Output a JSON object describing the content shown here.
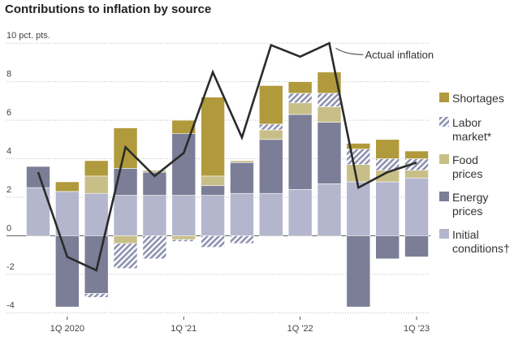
{
  "chart_data": {
    "type": "bar",
    "stacked": true,
    "title": "Contributions to inflation by source",
    "categories": [
      null,
      "1Q 2020",
      null,
      null,
      null,
      "1Q '21",
      null,
      null,
      null,
      "1Q '22",
      null,
      null,
      null,
      "1Q '23"
    ],
    "ylim": [
      -4.2,
      10.6
    ],
    "yticks": [
      -4,
      -2,
      0,
      2,
      4,
      6,
      8,
      {
        "value": 10,
        "label": "10 pct. pts."
      }
    ],
    "grid": true,
    "series": [
      {
        "name": "Initial conditions†",
        "color": "#b4b6cd",
        "values": [
          2.5,
          2.3,
          2.2,
          2.1,
          2.1,
          2.1,
          2.1,
          2.2,
          2.2,
          2.4,
          2.7,
          2.8,
          2.8,
          3.0
        ]
      },
      {
        "name": "Energy prices",
        "color": "#7b7e96",
        "values": [
          1.1,
          -3.7,
          -3.0,
          1.4,
          1.2,
          3.2,
          0.5,
          1.6,
          2.8,
          3.9,
          3.2,
          -3.7,
          -1.2,
          -1.1
        ]
      },
      {
        "name": "Food prices",
        "color": "#c8bf88",
        "values": [
          0,
          0,
          0.9,
          -0.4,
          0.1,
          -0.2,
          0.5,
          0.1,
          0.5,
          0.6,
          0.8,
          0.9,
          0.6,
          0.4
        ]
      },
      {
        "name": "Labor market*",
        "color": "#8e91b0",
        "hatch": true,
        "values": [
          0,
          0,
          -0.2,
          -1.3,
          -1.2,
          -0.1,
          -0.6,
          -0.4,
          0.3,
          0.5,
          0.7,
          0.8,
          0.6,
          0.6
        ]
      },
      {
        "name": "Shortages",
        "color": "#b09a3c",
        "values": [
          0,
          0.5,
          0.8,
          2.1,
          0,
          0.7,
          4.1,
          0,
          2.0,
          0.6,
          1.1,
          0.3,
          1.0,
          0.4
        ]
      }
    ],
    "line": {
      "name": "Actual inflation",
      "color": "#2b2b2b",
      "values": [
        3.3,
        -1.1,
        -1.8,
        4.6,
        3.1,
        4.3,
        8.5,
        5.1,
        9.9,
        9.3,
        10.0,
        2.5,
        3.3,
        3.8
      ]
    }
  }
}
